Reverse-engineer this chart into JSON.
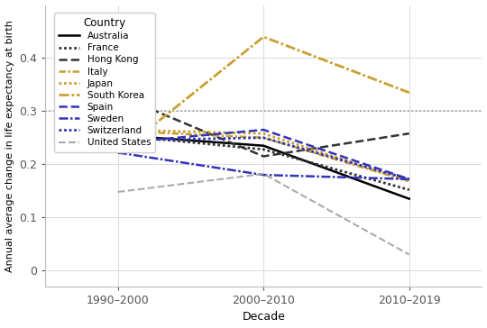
{
  "x_labels": [
    "1990–2000",
    "2000–2010",
    "2010–2019"
  ],
  "x_positions": [
    0,
    1,
    2
  ],
  "countries": [
    {
      "name": "Australia",
      "values": [
        0.255,
        0.235,
        0.135
      ],
      "color": "#000000",
      "ls": "solid",
      "lw": 1.8
    },
    {
      "name": "France",
      "values": [
        0.255,
        0.228,
        0.152
      ],
      "color": "#333333",
      "ls": "dotted",
      "lw": 2.0
    },
    {
      "name": "Hong Kong",
      "values": [
        0.33,
        0.215,
        0.258
      ],
      "color": "#333333",
      "ls": "dashed",
      "lw": 1.8
    },
    {
      "name": "Italy",
      "values": [
        0.263,
        0.25,
        0.168
      ],
      "color": "#c8a030",
      "ls": "dashdot",
      "lw": 1.8
    },
    {
      "name": "Japan",
      "values": [
        0.265,
        0.258,
        0.168
      ],
      "color": "#c8a030",
      "ls": "dotted",
      "lw": 2.0
    },
    {
      "name": "South Korea",
      "values": [
        0.22,
        0.44,
        0.335
      ],
      "color": "#c8a030",
      "ls": "dashdot",
      "lw": 2.0
    },
    {
      "name": "Spain",
      "values": [
        0.24,
        0.265,
        0.172
      ],
      "color": "#3333bb",
      "ls": "dashed",
      "lw": 1.8
    },
    {
      "name": "Sweden",
      "values": [
        0.222,
        0.18,
        0.172
      ],
      "color": "#3333bb",
      "ls": "dashdot",
      "lw": 1.8
    },
    {
      "name": "Switzerland",
      "values": [
        0.245,
        0.25,
        0.172
      ],
      "color": "#3333bb",
      "ls": "dotted",
      "lw": 2.0
    },
    {
      "name": "United States",
      "values": [
        0.148,
        0.182,
        0.03
      ],
      "color": "#aaaaaa",
      "ls": "dashed",
      "lw": 1.5
    }
  ],
  "hline_y": 0.3,
  "hline_color": "#999999",
  "xlabel": "Decade",
  "ylabel": "Annual average change in life expectancy at birth",
  "ylim": [
    -0.03,
    0.5
  ],
  "xlim": [
    -0.5,
    2.5
  ],
  "yticks": [
    0,
    0.1,
    0.2,
    0.3,
    0.4
  ],
  "ytick_labels": [
    "0",
    "0.1",
    "0.2",
    "0.3",
    "0.4"
  ],
  "bg_color": "#ffffff",
  "grid_color": "#dddddd",
  "legend_title": "Country",
  "legend_fontsize": 7.5,
  "legend_title_fontsize": 8.5,
  "axis_fontsize": 9,
  "label_fontsize": 9
}
